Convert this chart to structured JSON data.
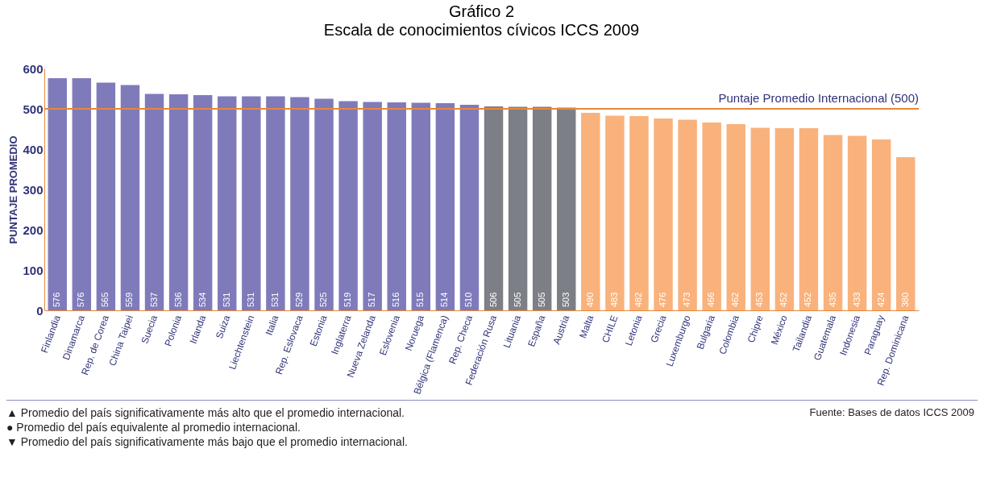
{
  "chart_data": {
    "type": "bar",
    "title": "Gráfico 2",
    "subtitle": "Escala de conocimientos cívicos ICCS 2009",
    "ylabel": "PUNTAJE PROMEDIO",
    "categories": [
      "Finlandia",
      "Dinamarca",
      "Rep. de Corea",
      "China Taipei",
      "Suecia",
      "Polonia",
      "Irlanda",
      "Suiza",
      "Liechtenstein",
      "Italia",
      "Rep. Eslovaca",
      "Estonia",
      "Inglaterra",
      "Nueva Zelanda",
      "Eslovenia",
      "Noruega",
      "Bélgica (Flamenca)",
      "Rep. Checa",
      "Federación Rusa",
      "Lituania",
      "España",
      "Austria",
      "Malta",
      "CHILE",
      "Letonia",
      "Grecia",
      "Luxemburgo",
      "Bulgaria",
      "Colombia",
      "Chipre",
      "México",
      "Tailandia",
      "Guatemala",
      "Indonesia",
      "Paraguay",
      "Rep. Dominicana"
    ],
    "values": [
      576,
      576,
      565,
      559,
      537,
      536,
      534,
      531,
      531,
      531,
      529,
      525,
      519,
      517,
      516,
      515,
      514,
      510,
      506,
      505,
      505,
      503,
      490,
      483,
      482,
      476,
      473,
      466,
      462,
      453,
      452,
      452,
      435,
      433,
      424,
      380
    ],
    "colors": [
      "#7f7bbb",
      "#7f7bbb",
      "#7f7bbb",
      "#7f7bbb",
      "#7f7bbb",
      "#7f7bbb",
      "#7f7bbb",
      "#7f7bbb",
      "#7f7bbb",
      "#7f7bbb",
      "#7f7bbb",
      "#7f7bbb",
      "#7f7bbb",
      "#7f7bbb",
      "#7f7bbb",
      "#7f7bbb",
      "#7f7bbb",
      "#7f7bbb",
      "#7d7f87",
      "#7d7f87",
      "#7d7f87",
      "#7d7f87",
      "#f9b27c",
      "#f9b27c",
      "#f9b27c",
      "#f9b27c",
      "#f9b27c",
      "#f9b27c",
      "#f9b27c",
      "#f9b27c",
      "#f9b27c",
      "#f9b27c",
      "#f9b27c",
      "#f9b27c",
      "#f9b27c",
      "#f9b27c"
    ],
    "ylim": [
      0,
      600
    ],
    "yticks": [
      0,
      100,
      200,
      300,
      400,
      500,
      600
    ],
    "grid": false,
    "data_labels": true,
    "ref_lines": [
      {
        "axis": "y",
        "value": 500,
        "label": "Puntaje Promedio Internacional (500)",
        "color": "#e8873a"
      }
    ],
    "annotations": [
      "▲ Promedio del país significativamente más alto que el promedio internacional.",
      "● Promedio del país equivalente al promedio internacional.",
      "▼ Promedio del país significativamente más bajo que el promedio internacional.",
      "Fuente: Bases de datos ICCS 2009"
    ]
  }
}
